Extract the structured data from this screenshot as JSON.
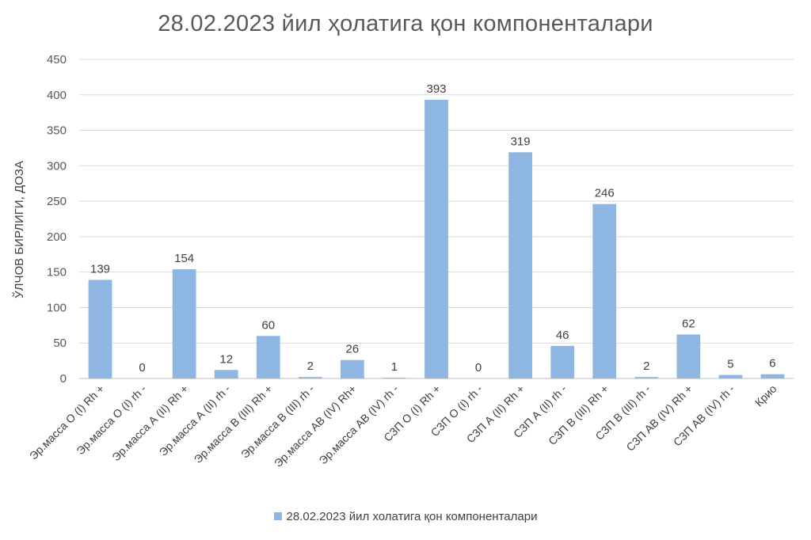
{
  "chart_data": {
    "type": "bar",
    "title": "28.02.2023 йил ҳолатига қон компоненталари",
    "ylabel": "ЎЛЧОВ БИРЛИГИ, ДОЗА",
    "xlabel": "",
    "ylim": [
      0,
      450
    ],
    "yticks": [
      0,
      50,
      100,
      150,
      200,
      250,
      300,
      350,
      400,
      450
    ],
    "grid": true,
    "legend_position": "bottom",
    "color": "#8DB6E2",
    "categories": [
      "Эр.масса  О (I) Rh +",
      "Эр.масса  О (I) rh -",
      "Эр.масса  А (II) Rh +",
      "Эр.масса  А (II) rh -",
      "Эр.масса  В (III) Rh +",
      "Эр.масса  В (III) rh -",
      "Эр.масса АВ (IV) Rh+",
      "Эр.масса  АВ (IV) rh -",
      "СЗП  О (I) Rh +",
      "СЗП  О (I) rh -",
      "СЗП  А (II) Rh +",
      "СЗП  А (II) rh -",
      "СЗП  В (III) Rh +",
      "СЗП  В (III) rh -",
      "СЗП  АВ (IV) Rh +",
      "СЗП  АВ (IV) rh -",
      "Крио"
    ],
    "series": [
      {
        "name": "28.02.2023 йил холатига қон компоненталари",
        "values": [
          139,
          0,
          154,
          12,
          60,
          2,
          26,
          1,
          393,
          0,
          319,
          46,
          246,
          2,
          62,
          5,
          6
        ]
      }
    ]
  }
}
